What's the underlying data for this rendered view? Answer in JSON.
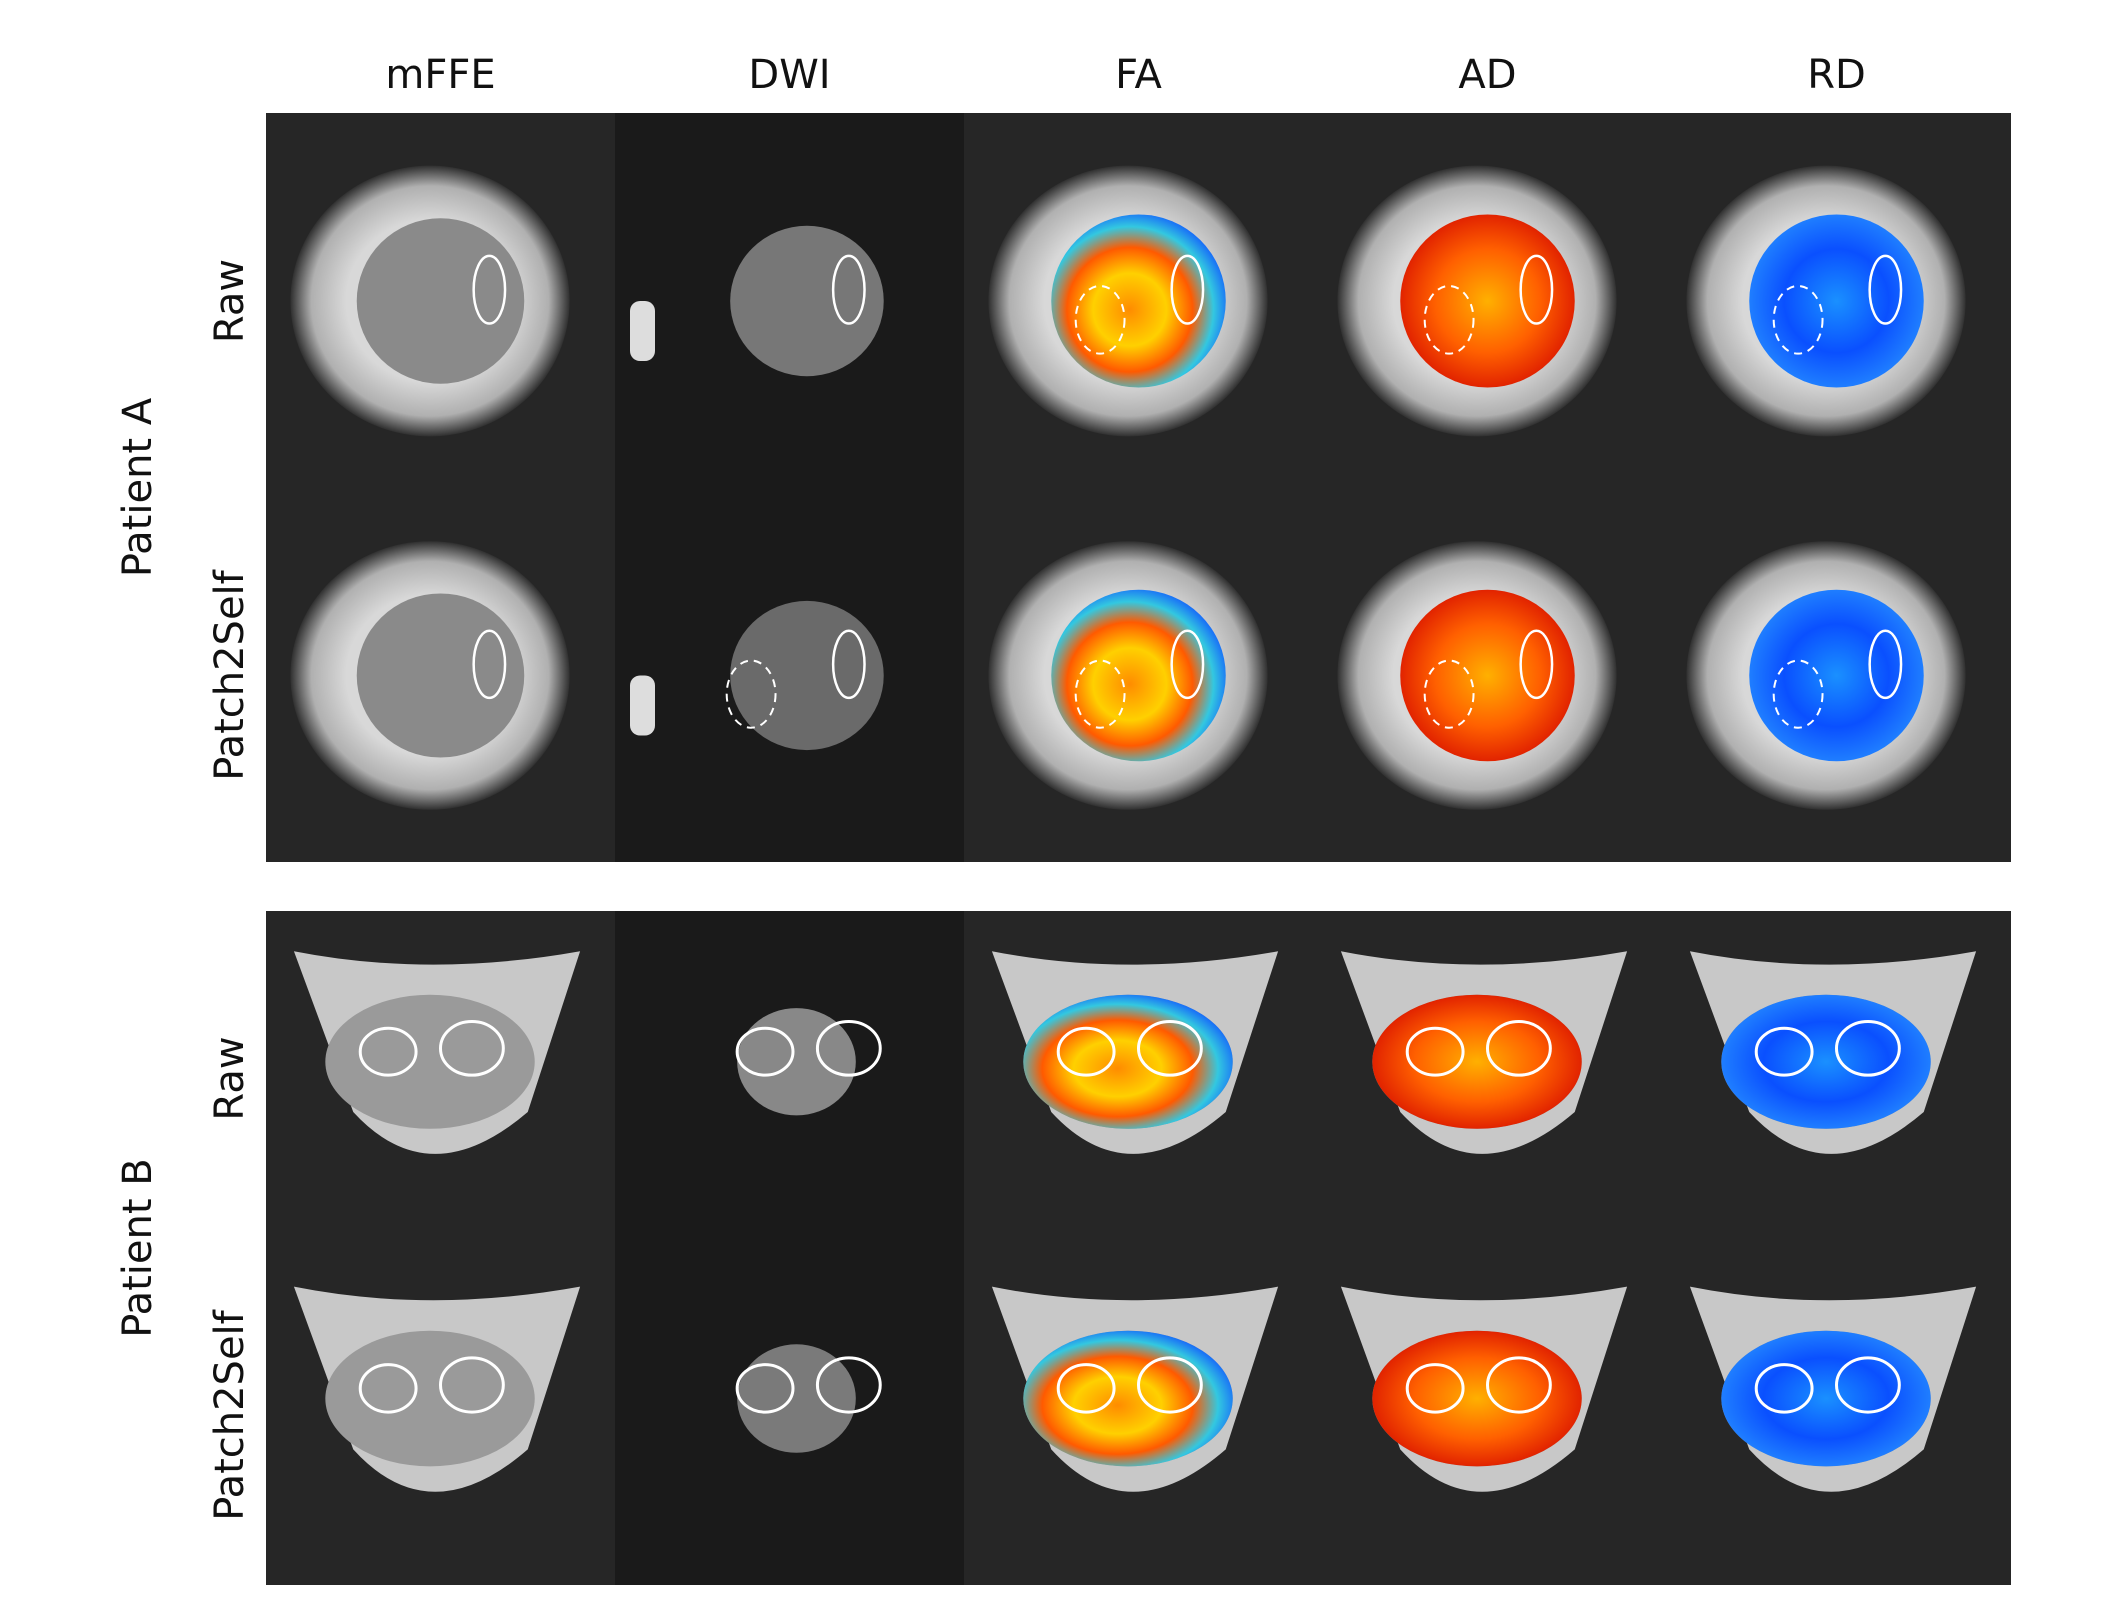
{
  "columns": [
    "mFFE",
    "DWI",
    "FA",
    "AD",
    "RD"
  ],
  "groups": [
    {
      "label": "Patient A",
      "rows": [
        "Raw",
        "Patch2Self"
      ]
    },
    {
      "label": "Patient B",
      "rows": [
        "Raw",
        "Patch2Self"
      ]
    }
  ]
}
